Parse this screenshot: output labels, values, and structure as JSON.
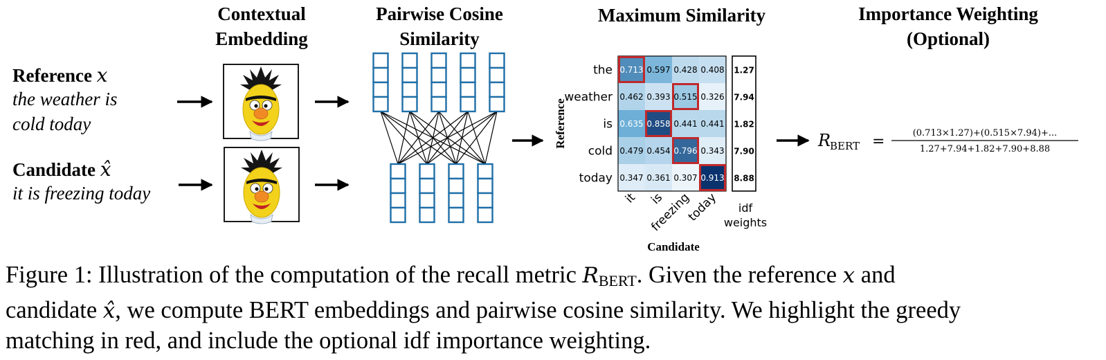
{
  "titles": {
    "contextual": [
      "Contextual",
      "Embedding"
    ],
    "pairwise": [
      "Pairwise Cosine",
      "Similarity"
    ],
    "maximum": "Maximum Similarity",
    "importance": [
      "Importance Weighting",
      "(Optional)"
    ]
  },
  "reference": {
    "label": "Reference",
    "symbol": "x",
    "lines": [
      "the weather is",
      "cold today"
    ]
  },
  "candidate": {
    "label": "Candidate",
    "symbol": "x̂",
    "lines": [
      "it is freezing today"
    ]
  },
  "embedding_icon": "bert-muppet-face-icon",
  "colors": {
    "vector_box": "#1f6fa8",
    "highlight": "#c0292b",
    "arrow": "#000000",
    "heatmap_low": "#f0f6fc",
    "heatmap_high": "#08306b"
  },
  "chart_data": {
    "type": "heatmap",
    "xlabel": "Candidate",
    "ylabel": "Reference",
    "x_tick_labels": [
      "it",
      "is",
      "freezing",
      "today"
    ],
    "y_tick_labels": [
      "the",
      "weather",
      "is",
      "cold",
      "today"
    ],
    "values": [
      [
        0.713,
        0.597,
        0.428,
        0.408
      ],
      [
        0.462,
        0.393,
        0.515,
        0.326
      ],
      [
        0.635,
        0.858,
        0.441,
        0.441
      ],
      [
        0.479,
        0.454,
        0.796,
        0.343
      ],
      [
        0.347,
        0.361,
        0.307,
        0.913
      ]
    ],
    "highlighted_max_col": [
      0,
      2,
      1,
      2,
      3
    ],
    "idf_label": [
      "idf",
      "weights"
    ],
    "idf_weights": [
      "1.27",
      "7.94",
      "1.82",
      "7.90",
      "8.88"
    ]
  },
  "formula": {
    "lhs": "R",
    "lhs_sub": "BERT",
    "eq": "=",
    "numerator": "(0.713×1.27)+(0.515×7.94)+...",
    "denominator": "1.27+7.94+1.82+7.90+8.88"
  },
  "caption": {
    "l1_a": "Figure 1: Illustration of the computation of the recall metric ",
    "l1_m": "R",
    "l1_sub": "BERT",
    "l1_b": ".  Given the reference ",
    "l1_x": "x",
    "l1_c": " and",
    "l2_a": "candidate ",
    "l2_x": "x̂",
    "l2_b": ", we compute BERT embeddings and pairwise cosine similarity. We highlight the greedy",
    "l3_a": "matching in red, and include the optional ",
    "l3_idf": "idf",
    "l3_b": " importance weighting."
  }
}
